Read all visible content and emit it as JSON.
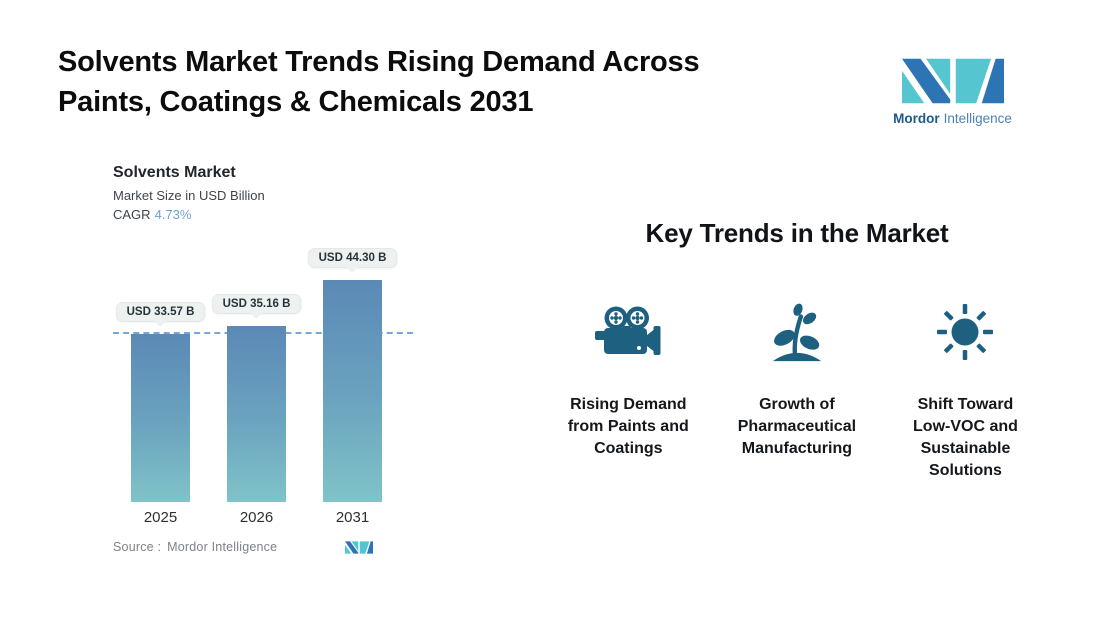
{
  "header": {
    "title": "Solvents Market Trends Rising Demand Across\nPaints, Coatings & Chemicals 2031"
  },
  "brand": {
    "logo_icon": "mordor-intelligence-mi-mark",
    "name_bold": "Mordor",
    "name_light": "Intelligence",
    "colors": {
      "teal": "#55c6cf",
      "blue": "#2d74b5",
      "text_bold": "#1d5a89",
      "text_light": "#4d82b4"
    }
  },
  "chart": {
    "title": "Solvents Market",
    "subtitle": "Market Size in USD Billion",
    "cagr_label": "CAGR",
    "cagr_value": "4.73%",
    "source_label": "Source :",
    "source_value": "Mordor Intelligence",
    "bars": [
      {
        "year": "2025",
        "value_label": "USD 33.57 B"
      },
      {
        "year": "2026",
        "value_label": "USD 35.16 B"
      },
      {
        "year": "2031",
        "value_label": "USD 44.30 B"
      }
    ]
  },
  "chart_data": {
    "type": "bar",
    "title": "Solvents Market",
    "subtitle": "Market Size in USD Billion",
    "unit": "USD Billion",
    "cagr_percent": 4.73,
    "categories": [
      "2025",
      "2026",
      "2031"
    ],
    "values": [
      33.57,
      35.16,
      44.3
    ],
    "data_labels": [
      "USD 33.57 B",
      "USD 35.16 B",
      "USD 44.30 B"
    ],
    "ylim": [
      0,
      44.3
    ],
    "reference_line": 33.57,
    "grid": false,
    "legend": false,
    "bar_gradient_top": "#5b89b6",
    "bar_gradient_bottom": "#80c3c8",
    "reference_line_color": "#7aa6d4",
    "source": "Mordor Intelligence"
  },
  "trends": {
    "heading": "Key Trends in the Market",
    "icon_color": "#1e6080",
    "items": [
      {
        "icon": "video-camera-icon",
        "label": "Rising Demand\nfrom Paints and\nCoatings"
      },
      {
        "icon": "plant-sprout-icon",
        "label": "Growth of\nPharmaceutical\nManufacturing"
      },
      {
        "icon": "sun-icon",
        "label": "Shift Toward\nLow-VOC and\nSustainable\nSolutions"
      }
    ]
  }
}
